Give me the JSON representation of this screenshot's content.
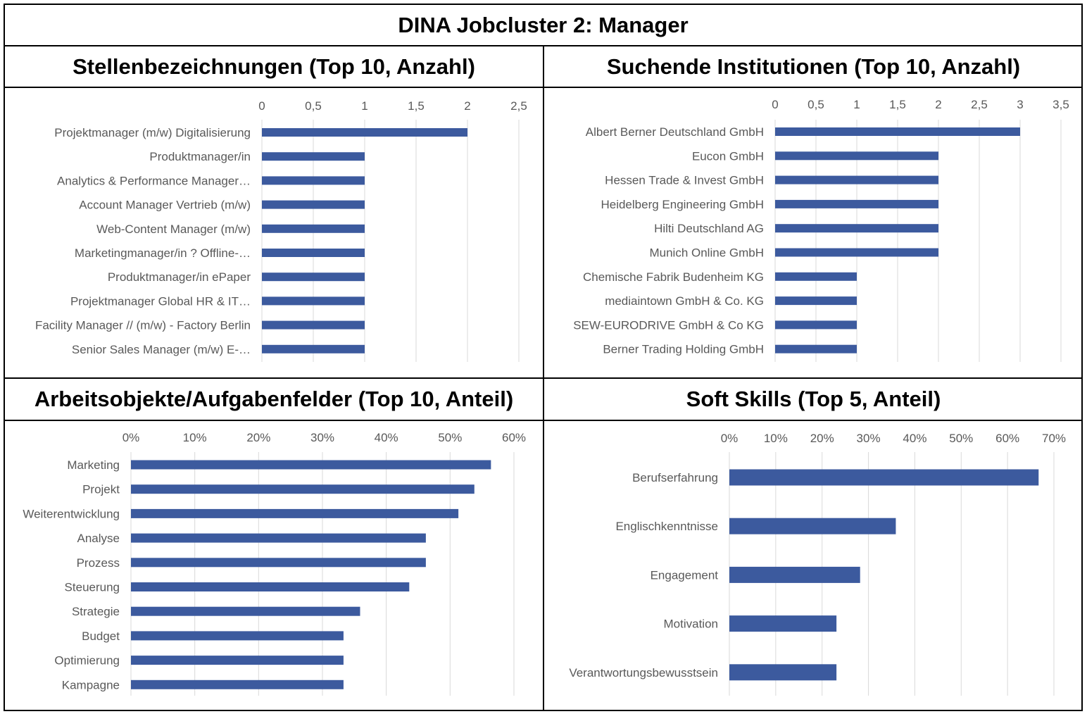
{
  "page_title": "DINA Jobcluster 2: Manager",
  "colors": {
    "bar": "#3C5A9E",
    "grid": "#D9D9D9",
    "text": "#595959",
    "border": "#000000"
  },
  "chart_data": [
    {
      "type": "bar",
      "orientation": "horizontal",
      "title": "Stellenbezeichnungen (Top 10, Anzahl)",
      "categories": [
        "Projektmanager (m/w) Digitalisierung",
        "Produktmanager/in",
        "Analytics & Performance Manager…",
        "Account Manager Vertrieb (m/w)",
        "Web-Content Manager (m/w)",
        "Marketingmanager/in ? Offline-…",
        "Produktmanager/in ePaper",
        "Projektmanager Global HR & IT…",
        "Facility Manager // (m/w) - Factory Berlin",
        "Senior Sales Manager (m/w) E-…"
      ],
      "values": [
        2,
        1,
        1,
        1,
        1,
        1,
        1,
        1,
        1,
        1
      ],
      "xlim": [
        0,
        2.5
      ],
      "tick_labels": [
        "0",
        "0,5",
        "1",
        "1,5",
        "2",
        "2,5"
      ],
      "grid": true,
      "axis_position": "top"
    },
    {
      "type": "bar",
      "orientation": "horizontal",
      "title": "Suchende Institutionen (Top 10, Anzahl)",
      "categories": [
        "Albert Berner Deutschland GmbH",
        "Eucon GmbH",
        "Hessen Trade & Invest GmbH",
        "Heidelberg Engineering GmbH",
        "Hilti Deutschland AG",
        "Munich Online GmbH",
        "Chemische Fabrik Budenheim KG",
        "mediaintown GmbH & Co. KG",
        "SEW-EURODRIVE GmbH & Co KG",
        "Berner Trading Holding GmbH"
      ],
      "values": [
        3,
        2,
        2,
        2,
        2,
        2,
        1,
        1,
        1,
        1
      ],
      "xlim": [
        0,
        3.5
      ],
      "tick_labels": [
        "0",
        "0,5",
        "1",
        "1,5",
        "2",
        "2,5",
        "3",
        "3,5"
      ],
      "grid": true,
      "axis_position": "top"
    },
    {
      "type": "bar",
      "orientation": "horizontal",
      "title": "Arbeitsobjekte/Aufgabenfelder (Top 10, Anteil)",
      "categories": [
        "Marketing",
        "Projekt",
        "Weiterentwicklung",
        "Analyse",
        "Prozess",
        "Steuerung",
        "Strategie",
        "Budget",
        "Optimierung",
        "Kampagne"
      ],
      "values": [
        0.564,
        0.538,
        0.513,
        0.462,
        0.462,
        0.436,
        0.359,
        0.333,
        0.333,
        0.333
      ],
      "xlim": [
        0,
        0.6
      ],
      "tick_labels": [
        "0%",
        "10%",
        "20%",
        "30%",
        "40%",
        "50%",
        "60%"
      ],
      "grid": true,
      "axis_position": "top"
    },
    {
      "type": "bar",
      "orientation": "horizontal",
      "title": "Soft Skills (Top 5, Anteil)",
      "categories": [
        "Berufserfahrung",
        "Englischkenntnisse",
        "Engagement",
        "Motivation",
        "Verantwortungsbewusstsein"
      ],
      "values": [
        0.667,
        0.359,
        0.282,
        0.231,
        0.231
      ],
      "xlim": [
        0,
        0.7
      ],
      "tick_labels": [
        "0%",
        "10%",
        "20%",
        "30%",
        "40%",
        "50%",
        "60%",
        "70%"
      ],
      "grid": true,
      "axis_position": "top"
    }
  ]
}
